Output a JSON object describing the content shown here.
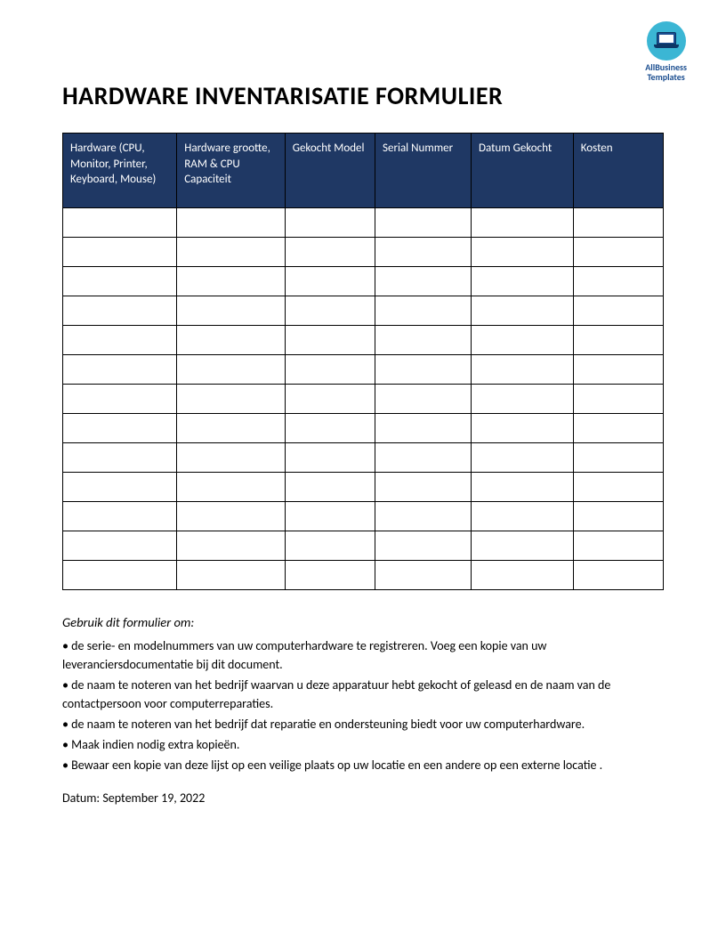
{
  "logo": {
    "line1": "AllBusiness",
    "line2": "Templates",
    "circle_bg": "#3bb6d4",
    "text_color": "#1a4d8f"
  },
  "title": "HARDWARE INVENTARISATIE FORMULIER",
  "table": {
    "header_bg": "#1f3864",
    "header_text_color": "#ffffff",
    "border_color": "#000000",
    "columns": [
      "Hardware (CPU, Monitor, Printer, Keyboard, Mouse)",
      "Hardware grootte, RAM & CPU Capaciteit",
      "Gekocht Model",
      "Serial Nummer",
      "Datum Gekocht",
      "Kosten"
    ],
    "column_widths_pct": [
      19,
      18,
      15,
      16,
      17,
      15
    ],
    "num_data_rows": 13,
    "rows": [
      [
        "",
        "",
        "",
        "",
        "",
        ""
      ],
      [
        "",
        "",
        "",
        "",
        "",
        ""
      ],
      [
        "",
        "",
        "",
        "",
        "",
        ""
      ],
      [
        "",
        "",
        "",
        "",
        "",
        ""
      ],
      [
        "",
        "",
        "",
        "",
        "",
        ""
      ],
      [
        "",
        "",
        "",
        "",
        "",
        ""
      ],
      [
        "",
        "",
        "",
        "",
        "",
        ""
      ],
      [
        "",
        "",
        "",
        "",
        "",
        ""
      ],
      [
        "",
        "",
        "",
        "",
        "",
        ""
      ],
      [
        "",
        "",
        "",
        "",
        "",
        ""
      ],
      [
        "",
        "",
        "",
        "",
        "",
        ""
      ],
      [
        "",
        "",
        "",
        "",
        "",
        ""
      ],
      [
        "",
        "",
        "",
        "",
        "",
        ""
      ]
    ]
  },
  "instructions": {
    "heading": "Gebruik dit formulier om:",
    "bullets": [
      "• de serie- en modelnummers van uw  computerhardware te registreren.  Voeg een kopie van uw leveranciersdocumentatie bij dit document.",
      "• de naam te noteren van het bedrijf waarvan u deze apparatuur hebt gekocht of  geleasd en de naam van de contactpersoon voor computerreparaties.",
      "• de naam te noteren van het bedrijf dat reparatie en ondersteuning biedt voor uw  computerhardware.",
      "• Maak indien nodig extra kopieën.",
      "• Bewaar een kopie van deze lijst op een veilige plaats op uw locatie en een andere op een externe locatie ."
    ]
  },
  "date_label": "Datum:",
  "date_value": "September 19, 2022"
}
